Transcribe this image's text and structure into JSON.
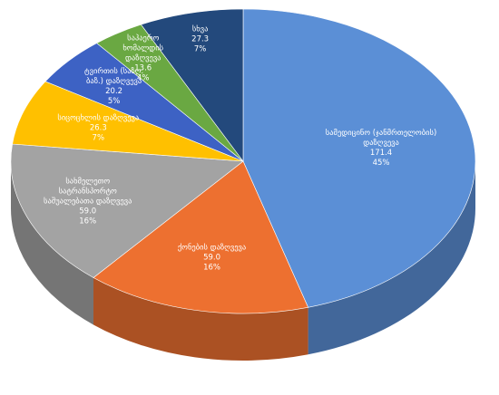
{
  "chart_data": {
    "type": "pie3d",
    "categories": [
      "სამედიცინო (ჯანმრთელობის) დაზღვევა",
      "ქონების დაზღვევა",
      "სახმელეთო სატრანსპორტო საშუალებათა დაზღვევა",
      "სიცოცხლის დაზღვევა",
      "ტვირთის (საზღ. ბაზ.) დაზღვევა",
      "საჰაერო ხომალდის დაზღვევა",
      "სხვა"
    ],
    "values": [
      171.4,
      59.0,
      59.0,
      26.3,
      20.2,
      13.6,
      27.3
    ],
    "value_labels": [
      "171.4",
      "59.0",
      "59.0",
      "26.3",
      "20.2",
      "13.6",
      "27.3"
    ],
    "percent_labels": [
      "45%",
      "16%",
      "16%",
      "7%",
      "5%",
      "4%",
      "7%"
    ],
    "colors": [
      "#5b8fd6",
      "#ed7030",
      "#a3a3a3",
      "#ffc000",
      "#3d62c4",
      "#6aa842",
      "#23497c"
    ]
  }
}
